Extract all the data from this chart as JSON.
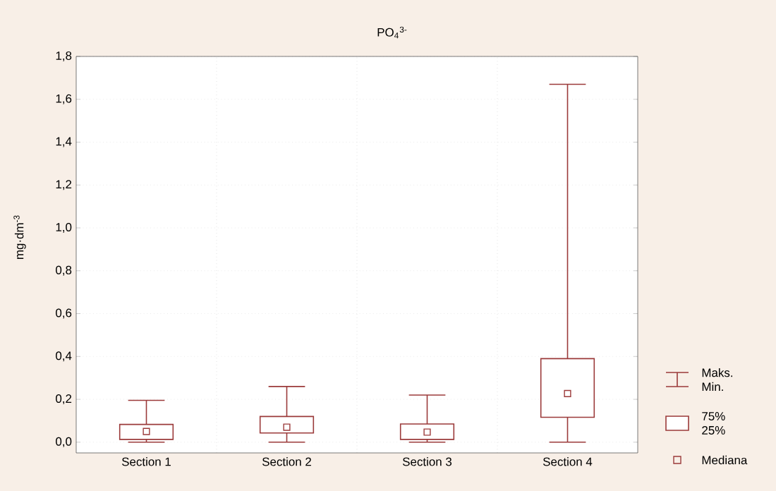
{
  "chart_data": {
    "type": "box",
    "title": "PO$_{4}$$^{3-}$",
    "ylabel": "mg·dm$^{-3}$",
    "categories": [
      "Section 1",
      "Section 2",
      "Section 3",
      "Section 4"
    ],
    "boxes": [
      {
        "low": 0,
        "q1": 0.013,
        "median": 0.05,
        "q3": 0.083,
        "high": 0.195
      },
      {
        "low": 0,
        "q1": 0.043,
        "median": 0.07,
        "q3": 0.12,
        "high": 0.26
      },
      {
        "low": 0,
        "q1": 0.013,
        "median": 0.047,
        "q3": 0.085,
        "high": 0.22
      },
      {
        "low": 0,
        "q1": 0.116,
        "median": 0.227,
        "q3": 0.39,
        "high": 1.67
      }
    ],
    "color": "#9b3a3a",
    "ylim": [
      -0.05,
      1.8
    ],
    "yticks": [
      {
        "value": 0,
        "label": "0,0"
      },
      {
        "value": 0.2,
        "label": "0,2"
      },
      {
        "value": 0.4,
        "label": "0,4"
      },
      {
        "value": 0.6,
        "label": "0,6"
      },
      {
        "value": 0.8,
        "label": "0,8"
      },
      {
        "value": 1.0,
        "label": "1,0"
      },
      {
        "value": 1.2,
        "label": "1,2"
      },
      {
        "value": 1.4,
        "label": "1,4"
      },
      {
        "value": 1.6,
        "label": "1,6"
      },
      {
        "value": 1.8,
        "label": "1,8"
      }
    ],
    "grid": true,
    "annotations": [
      "Maks. Min.",
      "75% 25%",
      "Mediana"
    ]
  }
}
